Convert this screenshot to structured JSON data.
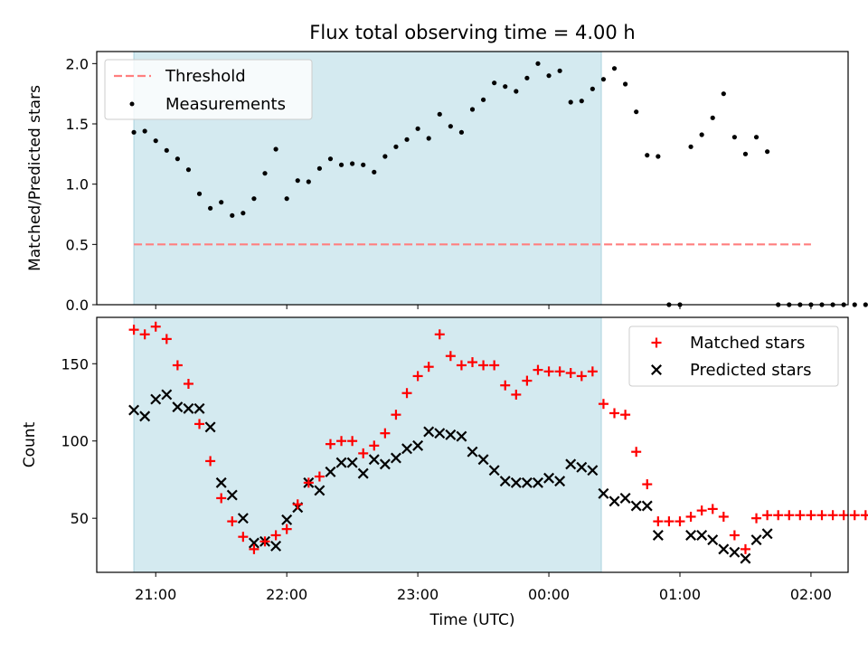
{
  "chart_data": [
    {
      "type": "scatter",
      "title": "Flux total observing time = 4.00 h",
      "xlabel": "",
      "ylabel": "Matched/Predicted stars",
      "xlim": [
        "20:33",
        "02:17"
      ],
      "ylim": [
        0,
        2.1
      ],
      "xticks": [
        "21:00",
        "22:00",
        "23:00",
        "00:00",
        "01:00",
        "02:00"
      ],
      "yticks": [
        "0.0",
        "0.5",
        "1.0",
        "1.5",
        "2.0"
      ],
      "shaded_range": [
        "20:50",
        "00:24"
      ],
      "shade_color": "#d4eaf0",
      "threshold": {
        "name": "Threshold",
        "value": 0.5,
        "x_range": [
          "20:50",
          "02:00"
        ],
        "color": "#ff7f7f",
        "style": "dashed"
      },
      "legend": {
        "placement": "top-left",
        "entries": [
          "Threshold",
          "Measurements"
        ]
      },
      "series": [
        {
          "name": "Measurements",
          "marker": "dot",
          "color": "#000000",
          "points": [
            [
              "20:50",
              1.43
            ],
            [
              "20:55",
              1.44
            ],
            [
              "21:00",
              1.36
            ],
            [
              "21:05",
              1.28
            ],
            [
              "21:10",
              1.21
            ],
            [
              "21:15",
              1.12
            ],
            [
              "21:20",
              0.92
            ],
            [
              "21:25",
              0.8
            ],
            [
              "21:30",
              0.85
            ],
            [
              "21:35",
              0.74
            ],
            [
              "21:40",
              0.76
            ],
            [
              "21:45",
              0.88
            ],
            [
              "21:50",
              1.09
            ],
            [
              "21:55",
              1.29
            ],
            [
              "22:00",
              0.88
            ],
            [
              "22:05",
              1.03
            ],
            [
              "22:10",
              1.02
            ],
            [
              "22:15",
              1.13
            ],
            [
              "22:20",
              1.21
            ],
            [
              "22:25",
              1.16
            ],
            [
              "22:30",
              1.17
            ],
            [
              "22:35",
              1.16
            ],
            [
              "22:40",
              1.1
            ],
            [
              "22:45",
              1.23
            ],
            [
              "22:50",
              1.31
            ],
            [
              "22:55",
              1.37
            ],
            [
              "23:00",
              1.46
            ],
            [
              "23:05",
              1.38
            ],
            [
              "23:10",
              1.58
            ],
            [
              "23:15",
              1.48
            ],
            [
              "23:20",
              1.43
            ],
            [
              "23:25",
              1.62
            ],
            [
              "23:30",
              1.7
            ],
            [
              "23:35",
              1.84
            ],
            [
              "23:40",
              1.81
            ],
            [
              "23:45",
              1.77
            ],
            [
              "23:50",
              1.88
            ],
            [
              "23:55",
              2.0
            ],
            [
              "00:00",
              1.9
            ],
            [
              "00:05",
              1.94
            ],
            [
              "00:10",
              1.68
            ],
            [
              "00:15",
              1.69
            ],
            [
              "00:20",
              1.79
            ],
            [
              "00:25",
              1.87
            ],
            [
              "00:30",
              1.96
            ],
            [
              "00:35",
              1.83
            ],
            [
              "00:40",
              1.6
            ],
            [
              "00:45",
              1.24
            ],
            [
              "00:50",
              1.23
            ],
            [
              "00:55",
              0.0
            ],
            [
              "01:00",
              0.0
            ],
            [
              "01:05",
              1.31
            ],
            [
              "01:10",
              1.41
            ],
            [
              "01:15",
              1.55
            ],
            [
              "01:20",
              1.75
            ],
            [
              "01:25",
              1.39
            ],
            [
              "01:30",
              1.25
            ],
            [
              "01:35",
              1.39
            ],
            [
              "01:40",
              1.27
            ],
            [
              "01:45",
              0.0
            ],
            [
              "01:50",
              0.0
            ],
            [
              "01:55",
              0.0
            ],
            [
              "02:00",
              0.0
            ],
            [
              "02:05",
              0.0
            ],
            [
              "02:10",
              0.0
            ],
            [
              "02:15",
              0.0
            ],
            [
              "02:20",
              0.0
            ],
            [
              "02:25",
              0.0
            ]
          ]
        }
      ]
    },
    {
      "type": "scatter",
      "title": "",
      "xlabel": "Time (UTC)",
      "ylabel": "Count",
      "xlim": [
        "20:33",
        "02:17"
      ],
      "ylim": [
        15,
        180
      ],
      "xticks": [
        "21:00",
        "22:00",
        "23:00",
        "00:00",
        "01:00",
        "02:00"
      ],
      "yticks": [
        "50",
        "100",
        "150"
      ],
      "shaded_range": [
        "20:50",
        "00:24"
      ],
      "shade_color": "#d4eaf0",
      "legend": {
        "placement": "top-right",
        "entries": [
          "Matched stars",
          "Predicted stars"
        ]
      },
      "series": [
        {
          "name": "Matched stars",
          "marker": "plus",
          "color": "#ff0000",
          "points": [
            [
              "20:50",
              172
            ],
            [
              "20:55",
              169
            ],
            [
              "21:00",
              174
            ],
            [
              "21:05",
              166
            ],
            [
              "21:10",
              149
            ],
            [
              "21:15",
              137
            ],
            [
              "21:20",
              111
            ],
            [
              "21:25",
              87
            ],
            [
              "21:30",
              63
            ],
            [
              "21:35",
              48
            ],
            [
              "21:40",
              38
            ],
            [
              "21:45",
              30
            ],
            [
              "21:50",
              35
            ],
            [
              "21:55",
              39
            ],
            [
              "22:00",
              43
            ],
            [
              "22:05",
              59
            ],
            [
              "22:10",
              73
            ],
            [
              "22:15",
              77
            ],
            [
              "22:20",
              98
            ],
            [
              "22:25",
              100
            ],
            [
              "22:30",
              100
            ],
            [
              "22:35",
              92
            ],
            [
              "22:40",
              97
            ],
            [
              "22:45",
              105
            ],
            [
              "22:50",
              117
            ],
            [
              "22:55",
              131
            ],
            [
              "23:00",
              142
            ],
            [
              "23:05",
              148
            ],
            [
              "23:10",
              169
            ],
            [
              "23:15",
              155
            ],
            [
              "23:20",
              149
            ],
            [
              "23:25",
              151
            ],
            [
              "23:30",
              149
            ],
            [
              "23:35",
              149
            ],
            [
              "23:40",
              136
            ],
            [
              "23:45",
              130
            ],
            [
              "23:50",
              139
            ],
            [
              "23:55",
              146
            ],
            [
              "00:00",
              145
            ],
            [
              "00:05",
              145
            ],
            [
              "00:10",
              144
            ],
            [
              "00:15",
              142
            ],
            [
              "00:20",
              145
            ],
            [
              "00:25",
              124
            ],
            [
              "00:30",
              118
            ],
            [
              "00:35",
              117
            ],
            [
              "00:40",
              93
            ],
            [
              "00:45",
              72
            ],
            [
              "00:50",
              48
            ],
            [
              "00:55",
              48
            ],
            [
              "01:00",
              48
            ],
            [
              "01:05",
              51
            ],
            [
              "01:10",
              55
            ],
            [
              "01:15",
              56
            ],
            [
              "01:20",
              51
            ],
            [
              "01:25",
              39
            ],
            [
              "01:30",
              30
            ],
            [
              "01:35",
              50
            ],
            [
              "01:40",
              52
            ],
            [
              "01:45",
              52
            ],
            [
              "01:50",
              52
            ],
            [
              "01:55",
              52
            ],
            [
              "02:00",
              52
            ],
            [
              "02:05",
              52
            ],
            [
              "02:10",
              52
            ],
            [
              "02:15",
              52
            ],
            [
              "02:20",
              52
            ],
            [
              "02:25",
              52
            ]
          ]
        },
        {
          "name": "Predicted stars",
          "marker": "x",
          "color": "#000000",
          "points": [
            [
              "20:50",
              120
            ],
            [
              "20:55",
              116
            ],
            [
              "21:00",
              127
            ],
            [
              "21:05",
              130
            ],
            [
              "21:10",
              122
            ],
            [
              "21:15",
              121
            ],
            [
              "21:20",
              121
            ],
            [
              "21:25",
              109
            ],
            [
              "21:30",
              73
            ],
            [
              "21:35",
              65
            ],
            [
              "21:40",
              50
            ],
            [
              "21:45",
              34
            ],
            [
              "21:50",
              35
            ],
            [
              "21:55",
              32
            ],
            [
              "22:00",
              49
            ],
            [
              "22:05",
              57
            ],
            [
              "22:10",
              73
            ],
            [
              "22:15",
              68
            ],
            [
              "22:20",
              80
            ],
            [
              "22:25",
              86
            ],
            [
              "22:30",
              86
            ],
            [
              "22:35",
              79
            ],
            [
              "22:40",
              88
            ],
            [
              "22:45",
              85
            ],
            [
              "22:50",
              89
            ],
            [
              "22:55",
              95
            ],
            [
              "23:00",
              97
            ],
            [
              "23:05",
              106
            ],
            [
              "23:10",
              105
            ],
            [
              "23:15",
              104
            ],
            [
              "23:20",
              103
            ],
            [
              "23:25",
              93
            ],
            [
              "23:30",
              88
            ],
            [
              "23:35",
              81
            ],
            [
              "23:40",
              74
            ],
            [
              "23:45",
              73
            ],
            [
              "23:50",
              73
            ],
            [
              "23:55",
              73
            ],
            [
              "00:00",
              76
            ],
            [
              "00:05",
              74
            ],
            [
              "00:10",
              85
            ],
            [
              "00:15",
              83
            ],
            [
              "00:20",
              81
            ],
            [
              "00:25",
              66
            ],
            [
              "00:30",
              61
            ],
            [
              "00:35",
              63
            ],
            [
              "00:40",
              58
            ],
            [
              "00:45",
              58
            ],
            [
              "00:50",
              39
            ],
            [
              "01:05",
              39
            ],
            [
              "01:10",
              39
            ],
            [
              "01:15",
              36
            ],
            [
              "01:20",
              30
            ],
            [
              "01:25",
              28
            ],
            [
              "01:30",
              24
            ],
            [
              "01:35",
              36
            ],
            [
              "01:40",
              40
            ]
          ]
        }
      ]
    }
  ]
}
